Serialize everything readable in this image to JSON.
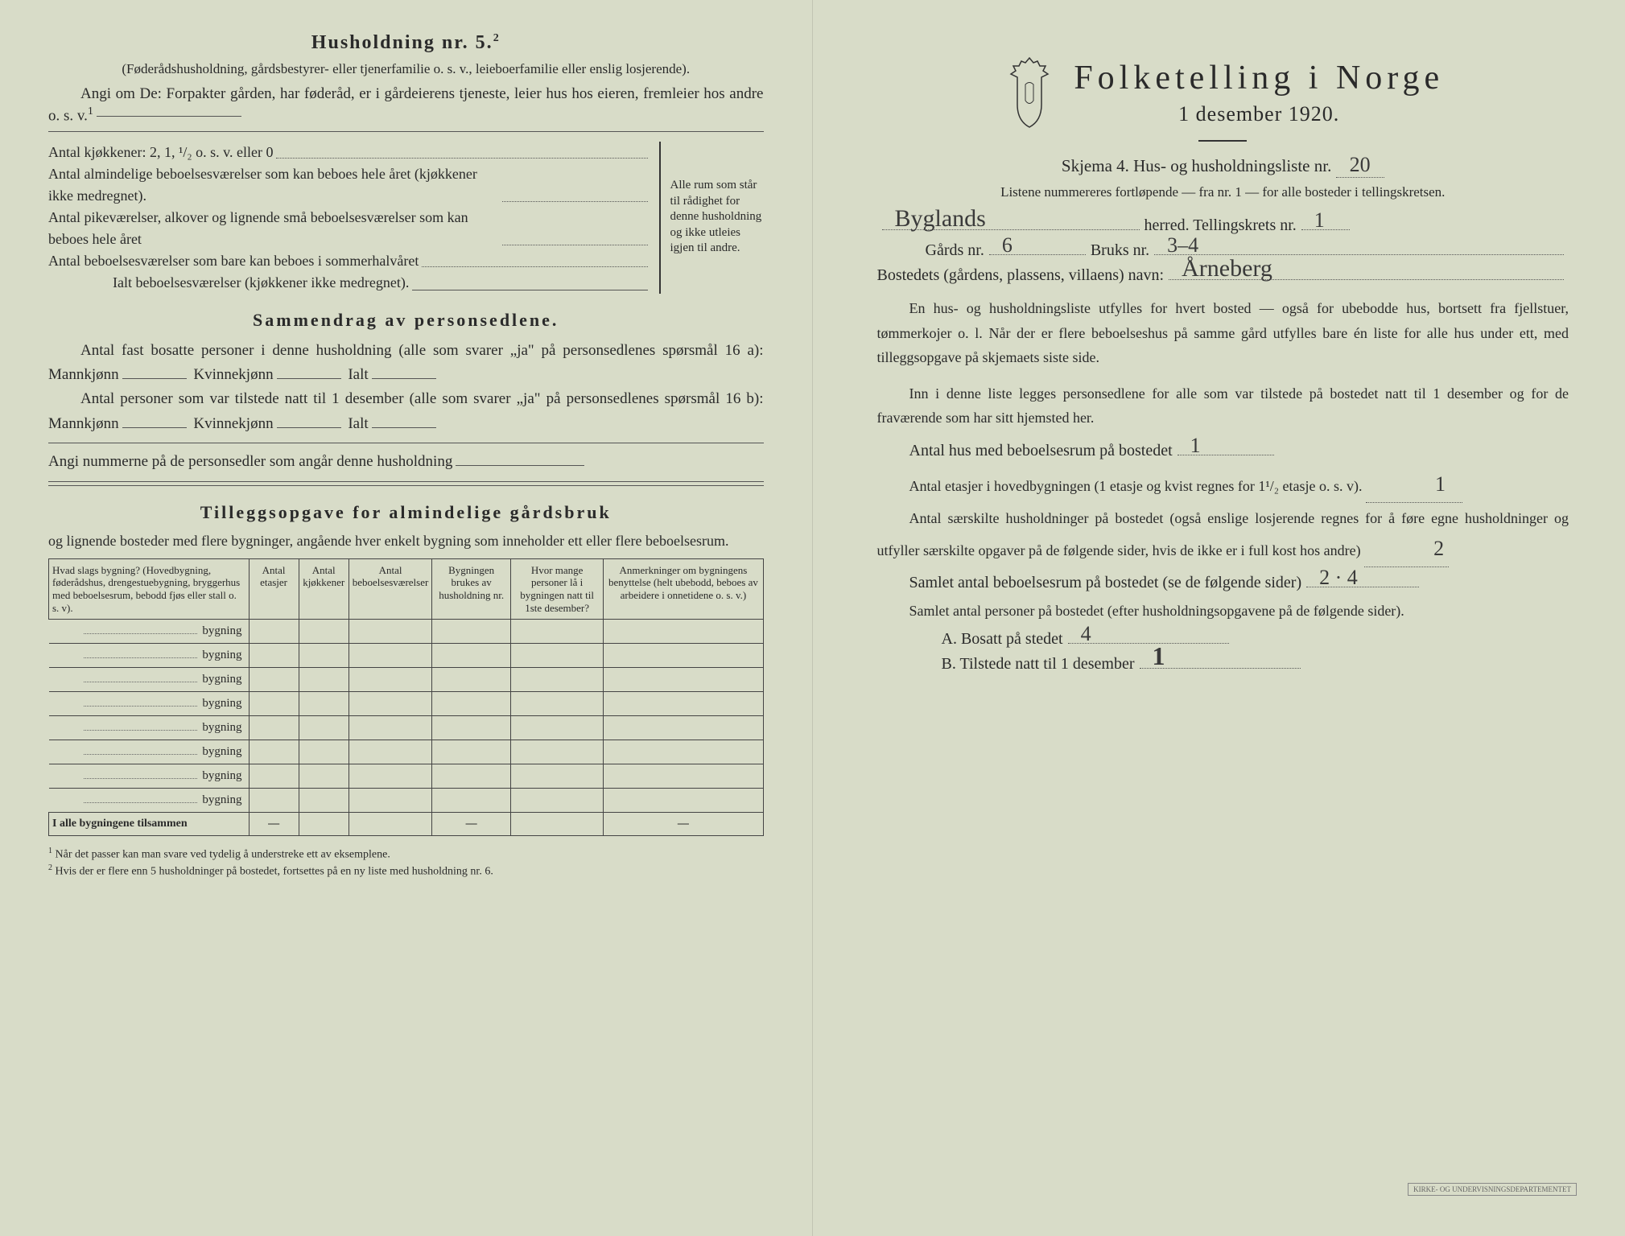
{
  "left": {
    "household_title": "Husholdning nr. 5.",
    "household_sup": "2",
    "household_desc": "(Føderådshusholdning, gårdsbestyrer- eller tjenerfamilie o. s. v., leieboerfamilie eller enslig losjerende).",
    "angi_intro": "Angi om De: Forpakter gården, har føderåd, er i gårdeierens tjeneste, leier hus hos eieren, fremleier hos andre o. s. v.",
    "angi_sup": "1",
    "kitchen_line": "Antal kjøkkener: 2, 1, ¹/₂ o. s. v. eller 0",
    "rooms": [
      "Antal almindelige beboelsesværelser som kan beboes hele året (kjøkkener ikke medregnet).",
      "Antal pikeværelser, alkover og lignende små beboelsesværelser som kan beboes hele året",
      "Antal beboelsesværelser som bare kan beboes i sommerhalvåret"
    ],
    "rooms_total": "Ialt beboelsesværelser  (kjøkkener ikke medregnet).",
    "bracket_text": "Alle rum som står til rådighet for denne husholdning og ikke utleies igjen til andre.",
    "sammendrag_title": "Sammendrag av personsedlene.",
    "sammendrag_p1a": "Antal fast bosatte personer i denne husholdning (alle som svarer „ja\" på personsedlenes spørsmål 16 a): Mannkjønn",
    "kvinnekjonn": "Kvinnekjønn",
    "ialt": "Ialt",
    "sammendrag_p2a": "Antal personer som var tilstede natt til 1 desember (alle som svarer „ja\" på personsedlenes spørsmål 16 b): Mannkjønn",
    "angi_nummerne": "Angi nummerne på de personsedler som angår denne husholdning",
    "tillegg_title": "Tilleggsopgave for almindelige gårdsbruk",
    "tillegg_desc": "og lignende bosteder med flere bygninger, angående hver enkelt bygning som inneholder ett eller flere beboelsesrum.",
    "table": {
      "headers": [
        "Hvad slags bygning?\n(Hovedbygning, føderådshus, drengestuebygning, bryggerhus med beboelsesrum, bebodd fjøs eller stall o. s. v).",
        "Antal etasjer",
        "Antal kjøkkener",
        "Antal beboelsesværelser",
        "Bygningen brukes av husholdning nr.",
        "Hvor mange personer lå i bygningen natt til 1ste desember?",
        "Anmerkninger om bygningens benyttelse (helt ubebodd, beboes av arbeidere i onnetidene o. s. v.)"
      ],
      "row_label": "bygning",
      "row_count": 8,
      "sum_label": "I alle bygningene tilsammen"
    },
    "footnotes": [
      "Når det passer kan man svare ved tydelig å understreke ett av eksemplene.",
      "Hvis der er flere enn 5 husholdninger på bostedet, fortsettes på en ny liste med husholdning nr. 6."
    ]
  },
  "right": {
    "main_title": "Folketelling i Norge",
    "date": "1 desember 1920.",
    "skjema_line": "Skjema 4.  Hus- og husholdningsliste nr.",
    "skjema_nr": "20",
    "listene_text": "Listene nummereres fortløpende — fra nr. 1 — for alle bosteder i tellingskretsen.",
    "herred_hw": "Byglands",
    "herred_label": "herred.  Tellingskrets nr.",
    "tellingskrets_nr": "1",
    "gards_label": "Gårds nr.",
    "gards_nr": "6",
    "bruks_label": "Bruks nr.",
    "bruks_nr": "3–4",
    "bosted_label": "Bostedets (gårdens, plassens, villaens) navn:",
    "bosted_navn": "Årneberg",
    "para1": "En hus- og husholdningsliste utfylles for hvert bosted — også for ubebodde hus, bortsett fra fjellstuer, tømmerkojer o. l.  Når der er flere beboelseshus på samme gård utfylles bare én liste for alle hus under ett, med tilleggsopgave på skjemaets siste side.",
    "para2": "Inn i denne liste legges personsedlene for alle som var tilstede på bostedet natt til 1 desember og for de fraværende som har sitt hjemsted her.",
    "q_hus": "Antal hus med beboelsesrum på bostedet",
    "q_hus_val": "1",
    "q_etasjer": "Antal etasjer i hovedbygningen (1 etasje og kvist regnes for 1¹/₂ etasje o. s. v).",
    "q_etasjer_val": "1",
    "q_hushold": "Antal særskilte husholdninger på bostedet (også enslige losjerende regnes for å føre egne husholdninger og utfyller særskilte opgaver på de følgende sider, hvis de ikke er i full kost hos andre)",
    "q_hushold_val": "2",
    "q_samlet_rum": "Samlet antal beboelsesrum på bostedet (se de følgende sider)",
    "q_samlet_rum_val": "2 · 4",
    "q_samlet_pers": "Samlet antal personer på bostedet (efter husholdningsopgavene på de følgende sider).",
    "q_a": "A.  Bosatt på stedet",
    "q_a_val": "4",
    "q_b": "B.  Tilstede natt til 1 desember",
    "q_b_val": "1",
    "stamp": "KIRKE- OG UNDERVISNINGSDEPARTEMENTET"
  }
}
